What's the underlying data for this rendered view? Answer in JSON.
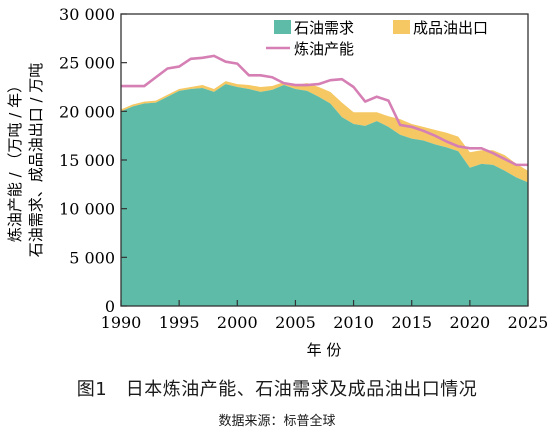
{
  "chart_data": {
    "type": "area",
    "xlabel": "年 份",
    "ylabel_line1": "炼油产能 / （万吨 / 年）",
    "ylabel_line2": "石油需求、成品油出口 / 万吨",
    "xlim": [
      1990,
      2025
    ],
    "ylim": [
      0,
      30000
    ],
    "x_ticks": [
      "1990",
      "1995",
      "2000",
      "2005",
      "2010",
      "2015",
      "2020",
      "2025"
    ],
    "y_ticks": [
      "0",
      "5 000",
      "10 000",
      "15 000",
      "20 000",
      "25 000",
      "30 000"
    ],
    "legend_position": "top-right",
    "legend": [
      "石油需求",
      "成品油出口",
      "炼油产能"
    ],
    "colors": {
      "demand": "#5dbba8",
      "export": "#f5c863",
      "capacity": "#d57fb4"
    },
    "x": [
      1990,
      1991,
      1992,
      1993,
      1994,
      1995,
      1996,
      1997,
      1998,
      1999,
      2000,
      2001,
      2002,
      2003,
      2004,
      2005,
      2006,
      2007,
      2008,
      2009,
      2010,
      2011,
      2012,
      2013,
      2014,
      2015,
      2016,
      2017,
      2018,
      2019,
      2020,
      2021,
      2022,
      2023,
      2024,
      2025
    ],
    "series": [
      {
        "name": "石油需求",
        "kind": "area",
        "values": [
          20000,
          20500,
          20800,
          20900,
          21500,
          22100,
          22300,
          22400,
          22000,
          22800,
          22500,
          22300,
          22000,
          22200,
          22700,
          22300,
          22100,
          21500,
          20800,
          19400,
          18700,
          18500,
          19000,
          18400,
          17600,
          17200,
          17000,
          16600,
          16300,
          15900,
          14200,
          14600,
          14500,
          13900,
          13200,
          12700
        ]
      },
      {
        "name": "成品油出口",
        "kind": "stacked",
        "values": [
          200,
          200,
          200,
          200,
          200,
          200,
          200,
          300,
          300,
          300,
          300,
          400,
          500,
          400,
          300,
          400,
          800,
          1000,
          1200,
          1500,
          1200,
          1400,
          900,
          1100,
          1600,
          1500,
          1400,
          1500,
          1500,
          1500,
          1600,
          1400,
          1500,
          1600,
          1400,
          1200
        ]
      },
      {
        "name": "炼油产能",
        "kind": "line",
        "values": [
          22600,
          22600,
          22600,
          23500,
          24400,
          24600,
          25400,
          25500,
          25700,
          25100,
          24900,
          23700,
          23700,
          23500,
          22900,
          22700,
          22700,
          22800,
          23200,
          23300,
          22500,
          21000,
          21500,
          21100,
          18600,
          18400,
          18000,
          17500,
          16900,
          16400,
          16200,
          16200,
          15700,
          15100,
          14500,
          14500
        ]
      }
    ]
  },
  "caption": {
    "title": "图1　日本炼油产能、石油需求及成品油出口情况",
    "source": "数据来源：标普全球"
  }
}
